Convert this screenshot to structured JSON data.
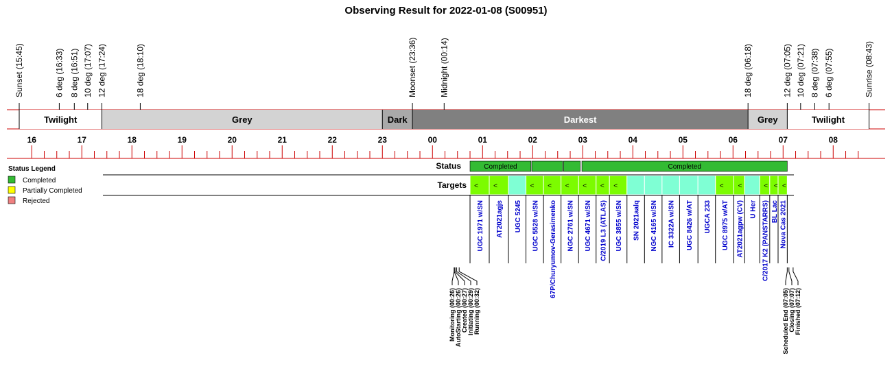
{
  "chart_data": {
    "type": "timeline",
    "title": "Observing Result for 2022-01-08 (S00951)",
    "colors": {
      "axis_red": "#cc0000",
      "twilight": "#ffffff",
      "grey": "#d3d3d3",
      "dark": "#a9a9a9",
      "darkest": "#808080",
      "completed": "#33bb33",
      "partial": "#ffff00",
      "rejected": "#f08080",
      "target_green": "#7cfc00",
      "target_aqua": "#7fffd4",
      "target_text": "#0000cc"
    },
    "time_range": [
      "15:45",
      "08:43"
    ],
    "events": [
      {
        "label": "Sunset (15:45)",
        "time": "15:45",
        "color": "#000000"
      },
      {
        "label": "6 deg (16:33)",
        "time": "16:33",
        "color": "#000000"
      },
      {
        "label": "8 deg (16:51)",
        "time": "16:51",
        "color": "#000000"
      },
      {
        "label": "10 deg (17:07)",
        "time": "17:07",
        "color": "#000000"
      },
      {
        "label": "12 deg (17:24)",
        "time": "17:24",
        "color": "#000000"
      },
      {
        "label": "18 deg (18:10)",
        "time": "18:10",
        "color": "#000000"
      },
      {
        "label": "Moonset (23:36)",
        "time": "23:36",
        "color": "#0000cc"
      },
      {
        "label": "Midnight (00:14)",
        "time": "00:14",
        "color": "#000000"
      },
      {
        "label": "18 deg (06:18)",
        "time": "06:18",
        "color": "#000000"
      },
      {
        "label": "12 deg (07:05)",
        "time": "07:05",
        "color": "#000000"
      },
      {
        "label": "10 deg (07:21)",
        "time": "07:21",
        "color": "#000000"
      },
      {
        "label": "8 deg (07:38)",
        "time": "07:38",
        "color": "#000000"
      },
      {
        "label": "6 deg (07:55)",
        "time": "07:55",
        "color": "#000000"
      },
      {
        "label": "Sunrise (08:43)",
        "time": "08:43",
        "color": "#000000"
      }
    ],
    "bands": [
      {
        "label": "Twilight",
        "start": "15:45",
        "end": "17:24",
        "kind": "twilight"
      },
      {
        "label": "Grey",
        "start": "17:24",
        "end": "23:00",
        "kind": "grey"
      },
      {
        "label": "Dark",
        "start": "23:00",
        "end": "23:36",
        "kind": "dark"
      },
      {
        "label": "Darkest",
        "start": "23:36",
        "end": "06:18",
        "kind": "darkest"
      },
      {
        "label": "Grey",
        "start": "06:18",
        "end": "07:05",
        "kind": "grey"
      },
      {
        "label": "Twilight",
        "start": "07:05",
        "end": "08:43",
        "kind": "twilight"
      }
    ],
    "hour_labels": [
      "16",
      "17",
      "18",
      "19",
      "20",
      "21",
      "22",
      "23",
      "00",
      "01",
      "02",
      "03",
      "04",
      "05",
      "06",
      "07",
      "08"
    ],
    "status_row_label": "Status",
    "targets_row_label": "Targets",
    "status_blocks": [
      {
        "start": "00:45",
        "end": "01:58",
        "status": "completed",
        "label": "Completed"
      },
      {
        "start": "01:59",
        "end": "02:36",
        "status": "completed",
        "label": ""
      },
      {
        "start": "02:37",
        "end": "02:57",
        "status": "completed",
        "label": ""
      },
      {
        "start": "02:59",
        "end": "07:05",
        "status": "completed",
        "label": "Completed"
      }
    ],
    "targets": [
      {
        "name": "UGC 1971 w/SN",
        "start": "00:45",
        "end": "01:08",
        "fill": "green",
        "mark": "<"
      },
      {
        "name": "AT2021agjs",
        "start": "01:08",
        "end": "01:31",
        "fill": "green",
        "mark": "<"
      },
      {
        "name": "UGC 5245",
        "start": "01:31",
        "end": "01:52",
        "fill": "aqua",
        "mark": ""
      },
      {
        "name": "UGC 5528 w/SN",
        "start": "01:52",
        "end": "02:13",
        "fill": "green",
        "mark": "<"
      },
      {
        "name": "67P/Churyumov-Gerasimenko",
        "start": "02:13",
        "end": "02:34",
        "fill": "green",
        "mark": "<"
      },
      {
        "name": "NGC 2761 w/SN",
        "start": "02:34",
        "end": "02:55",
        "fill": "green",
        "mark": "<"
      },
      {
        "name": "UGC 4671 w/SN",
        "start": "02:55",
        "end": "03:16",
        "fill": "green",
        "mark": "<"
      },
      {
        "name": "C/2019 L3 (ATLAS)",
        "start": "03:16",
        "end": "03:32",
        "fill": "green",
        "mark": "<"
      },
      {
        "name": "UGC 3855 w/SN",
        "start": "03:32",
        "end": "03:53",
        "fill": "green",
        "mark": "<"
      },
      {
        "name": "SN 2021aalq",
        "start": "03:53",
        "end": "04:14",
        "fill": "aqua",
        "mark": ""
      },
      {
        "name": "NGC 4165 w/SN",
        "start": "04:14",
        "end": "04:35",
        "fill": "aqua",
        "mark": ""
      },
      {
        "name": "IC 3322A w/SN",
        "start": "04:35",
        "end": "04:56",
        "fill": "aqua",
        "mark": ""
      },
      {
        "name": "UGC 8426 w/AT",
        "start": "04:56",
        "end": "05:18",
        "fill": "aqua",
        "mark": ""
      },
      {
        "name": "UGCA 233",
        "start": "05:18",
        "end": "05:39",
        "fill": "aqua",
        "mark": ""
      },
      {
        "name": "UGC 8975 w/AT",
        "start": "05:39",
        "end": "06:01",
        "fill": "green",
        "mark": "<"
      },
      {
        "name": "AT2021agpw (CV)",
        "start": "06:01",
        "end": "06:14",
        "fill": "green",
        "mark": "<"
      },
      {
        "name": "U Her",
        "start": "06:14",
        "end": "06:32",
        "fill": "aqua",
        "mark": ""
      },
      {
        "name": "C/2017 K2 (PANSTARRS)",
        "start": "06:32",
        "end": "06:44",
        "fill": "green",
        "mark": "<"
      },
      {
        "name": "BL Lac",
        "start": "06:44",
        "end": "06:54",
        "fill": "green",
        "mark": "<"
      },
      {
        "name": "Nova Cas 2021",
        "start": "06:54",
        "end": "07:05",
        "fill": "green",
        "mark": "<"
      }
    ],
    "milestones": [
      {
        "label": "Monitoring (00:26)",
        "time": "00:26"
      },
      {
        "label": "AutoStarting (00:26)",
        "time": "00:26"
      },
      {
        "label": "Created (00:27)",
        "time": "00:27"
      },
      {
        "label": "Initiating (00:29)",
        "time": "00:29"
      },
      {
        "label": "Running (00:32)",
        "time": "00:32"
      },
      {
        "label": "Scheduled End (07:05)",
        "time": "07:05"
      },
      {
        "label": "Closing (07:07)",
        "time": "07:07"
      },
      {
        "label": "Finished (07:12)",
        "time": "07:12"
      }
    ],
    "legend": {
      "title": "Status Legend",
      "placement": "left",
      "items": [
        {
          "label": "Completed",
          "color": "#33bb33"
        },
        {
          "label": "Partially Completed",
          "color": "#ffff00"
        },
        {
          "label": "Rejected",
          "color": "#f08080"
        }
      ]
    }
  }
}
